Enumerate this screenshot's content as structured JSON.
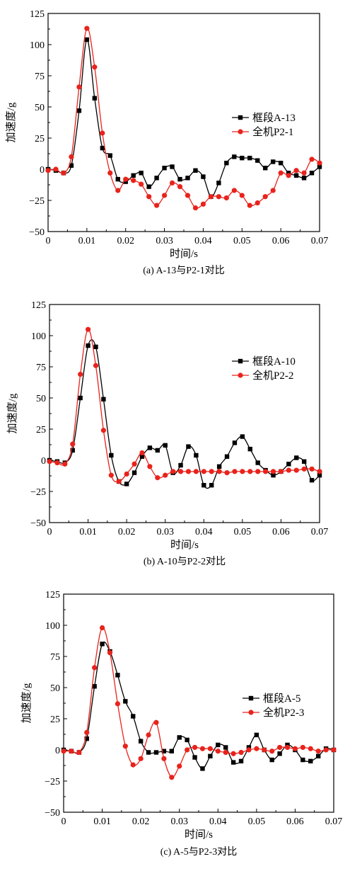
{
  "colors": {
    "black_series": "#000000",
    "red_series": "#e8231c"
  },
  "chart_data": [
    {
      "type": "line",
      "caption": "(a) A-13与P2-1对比",
      "xlabel": "时间/s",
      "ylabel": "加速度/g",
      "xlim": [
        0,
        0.07
      ],
      "ylim": [
        -50,
        125
      ],
      "xticks": [
        0,
        0.01,
        0.02,
        0.03,
        0.04,
        0.05,
        0.06,
        0.07
      ],
      "xtick_labels": [
        "0",
        "0.01",
        "0.02",
        "0.03",
        "0.04",
        "0.05",
        "0.06",
        "0.07"
      ],
      "yticks": [
        -50,
        -25,
        0,
        25,
        50,
        75,
        100,
        125
      ],
      "ytick_labels": [
        "−50",
        "−25",
        "0",
        "25",
        "50",
        "75",
        "100",
        "125"
      ],
      "legend_position": "right",
      "series": [
        {
          "name": "框段A-13",
          "marker": "square",
          "color": "#000000",
          "x": [
            0,
            0.002,
            0.004,
            0.006,
            0.008,
            0.01,
            0.012,
            0.014,
            0.016,
            0.018,
            0.02,
            0.022,
            0.024,
            0.026,
            0.028,
            0.03,
            0.032,
            0.034,
            0.036,
            0.038,
            0.04,
            0.042,
            0.044,
            0.046,
            0.048,
            0.05,
            0.052,
            0.054,
            0.056,
            0.058,
            0.06,
            0.062,
            0.064,
            0.066,
            0.068,
            0.07
          ],
          "y": [
            0,
            -1,
            -3,
            3,
            47,
            104,
            57,
            17,
            11,
            -8,
            -10,
            -5,
            -3,
            -14,
            -7,
            1,
            2,
            -8,
            -7,
            -1,
            -6,
            -22,
            -11,
            5,
            10,
            9,
            9,
            7,
            1,
            6,
            5,
            -3,
            -5,
            -7,
            -3,
            2
          ]
        },
        {
          "name": "全机P2-1",
          "marker": "circle",
          "color": "#e8231c",
          "x": [
            0,
            0.002,
            0.004,
            0.006,
            0.008,
            0.01,
            0.012,
            0.014,
            0.016,
            0.018,
            0.02,
            0.022,
            0.024,
            0.026,
            0.028,
            0.03,
            0.032,
            0.034,
            0.036,
            0.038,
            0.04,
            0.042,
            0.044,
            0.046,
            0.048,
            0.05,
            0.052,
            0.054,
            0.056,
            0.058,
            0.06,
            0.062,
            0.064,
            0.066,
            0.068,
            0.07
          ],
          "y": [
            -1,
            0,
            -3,
            10,
            66,
            113,
            82,
            29,
            -3,
            -17,
            -8,
            -9,
            -12,
            -22,
            -29,
            -21,
            -11,
            -14,
            -21,
            -31,
            -28,
            -22,
            -22,
            -23,
            -17,
            -21,
            -29,
            -27,
            -22,
            -17,
            -3,
            -5,
            -1,
            -3,
            8,
            5
          ]
        }
      ]
    },
    {
      "type": "line",
      "caption": "(b) A-10与P2-2对比",
      "xlabel": "时间/s",
      "ylabel": "加速度/g",
      "xlim": [
        0,
        0.07
      ],
      "ylim": [
        -50,
        125
      ],
      "xticks": [
        0,
        0.01,
        0.02,
        0.03,
        0.04,
        0.05,
        0.06,
        0.07
      ],
      "xtick_labels": [
        "0",
        "0.01",
        "0.02",
        "0.03",
        "0.04",
        "0.05",
        "0.06",
        "0.07"
      ],
      "yticks": [
        -50,
        -25,
        0,
        25,
        50,
        75,
        100,
        125
      ],
      "ytick_labels": [
        "−50",
        "−25",
        "0",
        "25",
        "50",
        "75",
        "100",
        "125"
      ],
      "legend_position": "right",
      "series": [
        {
          "name": "框段A-10",
          "marker": "square",
          "color": "#000000",
          "x": [
            0,
            0.002,
            0.004,
            0.006,
            0.008,
            0.01,
            0.012,
            0.014,
            0.016,
            0.018,
            0.02,
            0.022,
            0.024,
            0.026,
            0.028,
            0.03,
            0.032,
            0.034,
            0.036,
            0.038,
            0.04,
            0.042,
            0.044,
            0.046,
            0.048,
            0.05,
            0.052,
            0.054,
            0.056,
            0.058,
            0.06,
            0.062,
            0.064,
            0.066,
            0.068,
            0.07
          ],
          "y": [
            0,
            -1,
            -2,
            8,
            50,
            92,
            91,
            49,
            4,
            -17,
            -19,
            -10,
            3,
            10,
            8,
            12,
            -10,
            -4,
            11,
            4,
            -20,
            -20,
            -5,
            3,
            14,
            19,
            9,
            -2,
            -8,
            -12,
            -9,
            -3,
            2,
            -1,
            -16,
            -12
          ]
        },
        {
          "name": "全机P2-2",
          "marker": "circle",
          "color": "#e8231c",
          "x": [
            0,
            0.002,
            0.004,
            0.006,
            0.008,
            0.01,
            0.012,
            0.014,
            0.016,
            0.018,
            0.02,
            0.022,
            0.024,
            0.026,
            0.028,
            0.03,
            0.032,
            0.034,
            0.036,
            0.038,
            0.04,
            0.042,
            0.044,
            0.046,
            0.048,
            0.05,
            0.052,
            0.054,
            0.056,
            0.058,
            0.06,
            0.062,
            0.064,
            0.066,
            0.068,
            0.07
          ],
          "y": [
            -1,
            -2,
            -3,
            13,
            69,
            105,
            76,
            24,
            -12,
            -17,
            -11,
            -3,
            6,
            -5,
            -14,
            -12,
            -9,
            -9,
            -9,
            -9,
            -9,
            -9,
            -9,
            -10,
            -9,
            -9,
            -9,
            -9,
            -9,
            -9,
            -9,
            -8,
            -8,
            -7,
            -7,
            -9
          ]
        }
      ]
    },
    {
      "type": "line",
      "caption": "(c) A-5与P2-3对比",
      "xlabel": "时间/s",
      "ylabel": "加速度/g",
      "xlim": [
        0,
        0.07
      ],
      "ylim": [
        -50,
        125
      ],
      "xticks": [
        0,
        0.01,
        0.02,
        0.03,
        0.04,
        0.05,
        0.06,
        0.07
      ],
      "xtick_labels": [
        "0",
        "0.01",
        "0.02",
        "0.03",
        "0.04",
        "0.05",
        "0.06",
        "0.07"
      ],
      "yticks": [
        -50,
        -25,
        0,
        25,
        50,
        75,
        100,
        125
      ],
      "ytick_labels": [
        "−50",
        "−25",
        "0",
        "25",
        "50",
        "75",
        "100",
        "125"
      ],
      "legend_position": "right",
      "series": [
        {
          "name": "框段A-5",
          "marker": "square",
          "color": "#000000",
          "x": [
            0,
            0.002,
            0.004,
            0.006,
            0.008,
            0.01,
            0.012,
            0.014,
            0.016,
            0.018,
            0.02,
            0.022,
            0.024,
            0.026,
            0.028,
            0.03,
            0.032,
            0.034,
            0.036,
            0.038,
            0.04,
            0.042,
            0.044,
            0.046,
            0.048,
            0.05,
            0.052,
            0.054,
            0.056,
            0.058,
            0.06,
            0.062,
            0.064,
            0.066,
            0.068,
            0.07
          ],
          "y": [
            0,
            -1,
            -2,
            9,
            51,
            85,
            79,
            60,
            39,
            27,
            7,
            -2,
            -2,
            -1,
            -1,
            10,
            8,
            -6,
            -15,
            -5,
            4,
            2,
            -10,
            -9,
            2,
            12,
            0,
            -8,
            -3,
            4,
            0,
            -8,
            -9,
            -5,
            1,
            0
          ]
        },
        {
          "name": "全机P2-3",
          "marker": "circle",
          "color": "#e8231c",
          "x": [
            0,
            0.002,
            0.004,
            0.006,
            0.008,
            0.01,
            0.012,
            0.014,
            0.016,
            0.018,
            0.02,
            0.022,
            0.024,
            0.026,
            0.028,
            0.03,
            0.032,
            0.034,
            0.036,
            0.038,
            0.04,
            0.042,
            0.044,
            0.046,
            0.048,
            0.05,
            0.052,
            0.054,
            0.056,
            0.058,
            0.06,
            0.062,
            0.064,
            0.066,
            0.068,
            0.07
          ],
          "y": [
            -1,
            -1,
            -2,
            14,
            66,
            98,
            78,
            37,
            3,
            -12,
            -7,
            12,
            22,
            -7,
            -22,
            -13,
            0,
            2,
            1,
            1,
            -1,
            -2,
            -3,
            -2,
            0,
            1,
            0,
            -1,
            2,
            2,
            1,
            2,
            1,
            -1,
            0,
            0
          ]
        }
      ]
    }
  ]
}
